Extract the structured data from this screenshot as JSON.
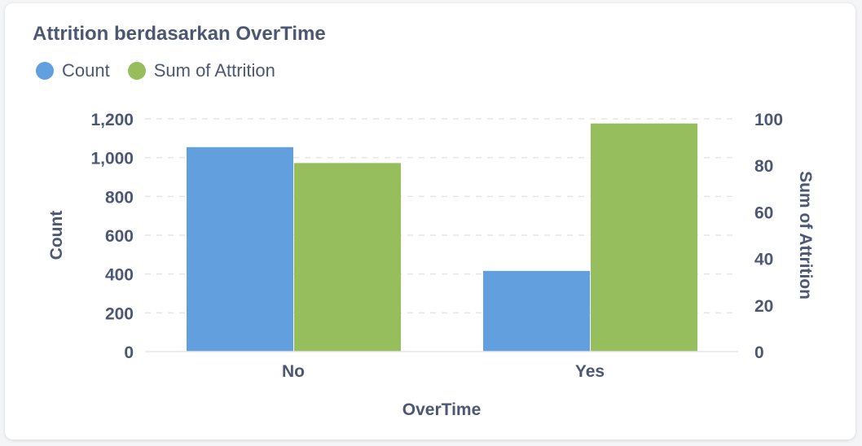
{
  "colors": {
    "count": "#629fdf",
    "attrition": "#97be5c",
    "text": "#4c5773",
    "grid": "#e3e5e9"
  },
  "chart_data": {
    "type": "bar",
    "title": "Attrition berdasarkan OverTime",
    "legend_position": "top-left",
    "grid": true,
    "xlabel": "OverTime",
    "categories": [
      "No",
      "Yes"
    ],
    "series": [
      {
        "name": "Count",
        "axis": "left",
        "values": [
          1054,
          416
        ]
      },
      {
        "name": "Sum of Attrition",
        "axis": "right",
        "values": [
          81,
          98
        ]
      }
    ],
    "y_left": {
      "label": "Count",
      "ylim": [
        0,
        1200
      ],
      "ticks": [
        "0",
        "200",
        "400",
        "600",
        "800",
        "1,000",
        "1,200"
      ]
    },
    "y_right": {
      "label": "Sum of Attrition",
      "ylim": [
        0,
        100
      ],
      "ticks": [
        "0",
        "20",
        "40",
        "60",
        "80",
        "100"
      ]
    }
  }
}
